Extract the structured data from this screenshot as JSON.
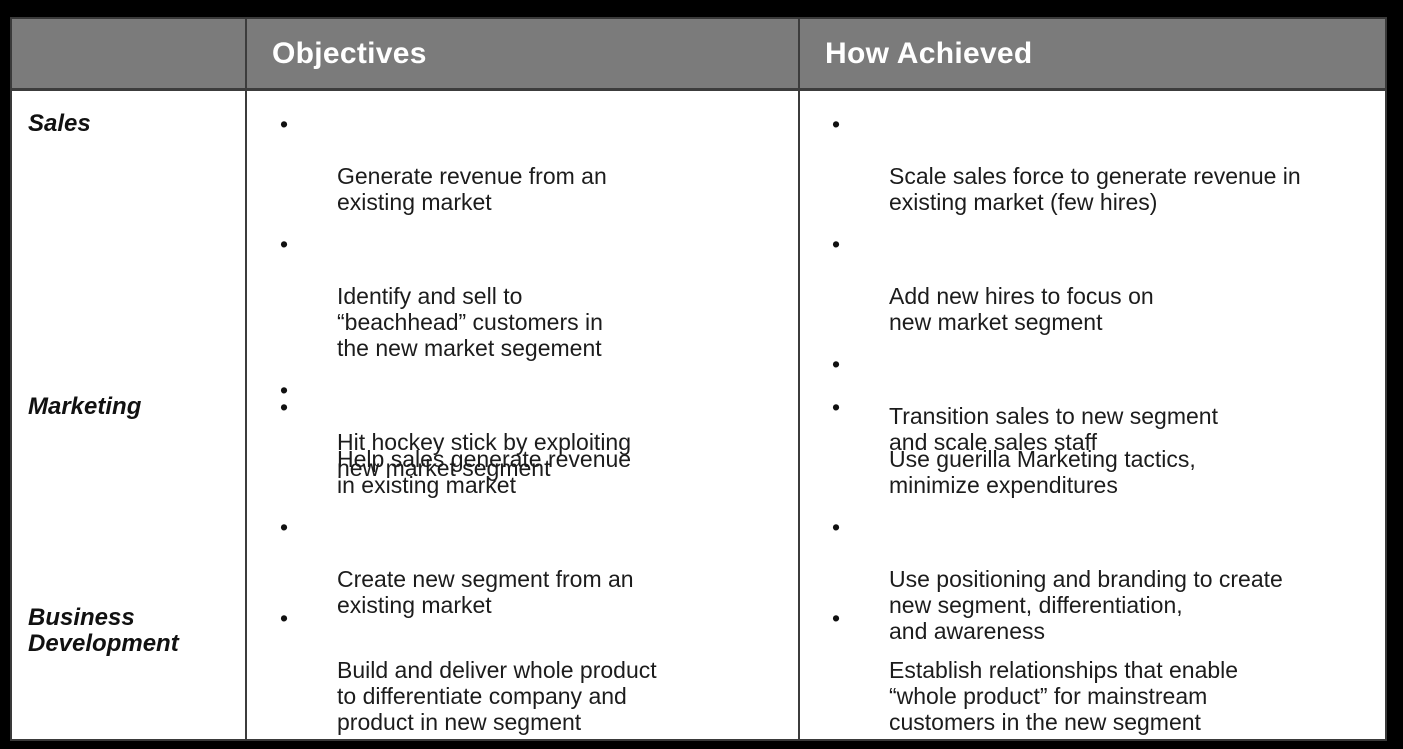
{
  "header": {
    "objectives": "Objectives",
    "how_achieved": "How Achieved"
  },
  "rows": [
    {
      "label": "Sales",
      "objectives": [
        "Generate revenue from an\nexisting market",
        "Identify and sell to\n“beachhead” customers in\nthe new market segement",
        "Hit hockey stick by exploiting\nnew market segment"
      ],
      "how": [
        "Scale sales force to generate revenue in\nexisting market (few hires)",
        "Add new hires to focus on\nnew market segment",
        "Transition sales to new segment\nand scale sales staff"
      ]
    },
    {
      "label": "Marketing",
      "objectives": [
        "Help sales generate revenue\nin existing market",
        "Create new segment from an\nexisting market"
      ],
      "how": [
        "Use guerilla Marketing tactics,\nminimize expenditures",
        "Use positioning and branding to create\nnew segment, differentiation,\nand awareness"
      ]
    },
    {
      "label": "Business\nDevelopment",
      "objectives": [
        "Build and deliver whole product\nto differentiate company and\nproduct in new segment"
      ],
      "how": [
        "Establish relationships that enable\n“whole product” for mainstream\ncustomers in the new segment"
      ]
    }
  ],
  "bullet_symbol": "•",
  "colors": {
    "header_bg": "#7b7b7b",
    "header_text": "#ffffff",
    "body_bg": "#ffffff",
    "border": "#3c3c3c"
  }
}
